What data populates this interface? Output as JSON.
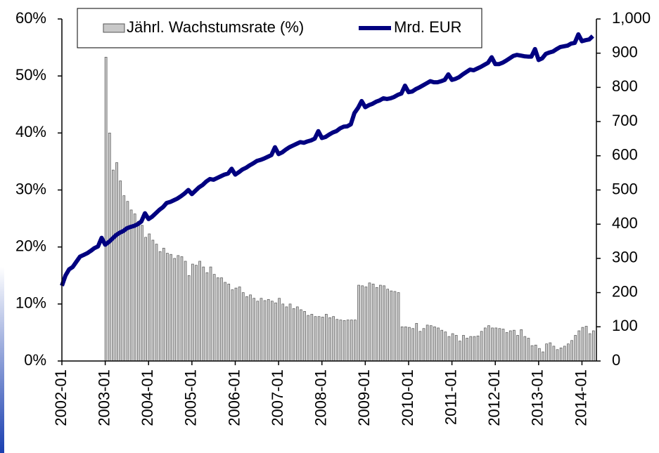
{
  "chart_data": {
    "type": "bar",
    "categories": [
      "2002-01",
      null,
      null,
      null,
      null,
      null,
      null,
      null,
      null,
      null,
      null,
      null,
      "2003-01",
      null,
      null,
      null,
      null,
      null,
      null,
      null,
      null,
      null,
      null,
      null,
      "2004-01",
      null,
      null,
      null,
      null,
      null,
      null,
      null,
      null,
      null,
      null,
      null,
      "2005-01",
      null,
      null,
      null,
      null,
      null,
      null,
      null,
      null,
      null,
      null,
      null,
      "2006-01",
      null,
      null,
      null,
      null,
      null,
      null,
      null,
      null,
      null,
      null,
      null,
      "2007-01",
      null,
      null,
      null,
      null,
      null,
      null,
      null,
      null,
      null,
      null,
      null,
      "2008-01",
      null,
      null,
      null,
      null,
      null,
      null,
      null,
      null,
      null,
      null,
      null,
      "2009-01",
      null,
      null,
      null,
      null,
      null,
      null,
      null,
      null,
      null,
      null,
      null,
      "2010-01",
      null,
      null,
      null,
      null,
      null,
      null,
      null,
      null,
      null,
      null,
      null,
      "2011-01",
      null,
      null,
      null,
      null,
      null,
      null,
      null,
      null,
      null,
      null,
      null,
      "2012-01",
      null,
      null,
      null,
      null,
      null,
      null,
      null,
      null,
      null,
      null,
      null,
      "2013-01",
      null,
      null,
      null,
      null,
      null,
      null,
      null,
      null,
      null,
      null,
      null,
      "2014-01",
      null,
      null,
      null
    ],
    "series": [
      {
        "name": "Jährl. Wachstumsrate (%)",
        "type": "bar",
        "axis": "y",
        "color": "#c8c8c8",
        "values": [
          null,
          null,
          null,
          null,
          null,
          null,
          null,
          null,
          null,
          null,
          null,
          null,
          53.3,
          40.0,
          33.5,
          34.8,
          31.6,
          29.0,
          28.0,
          26.5,
          25.8,
          24.5,
          23.8,
          21.7,
          22.3,
          21.2,
          20.5,
          19.2,
          19.8,
          18.9,
          18.7,
          18.0,
          18.5,
          18.3,
          17.5,
          15.0,
          17.0,
          16.8,
          17.5,
          16.5,
          15.5,
          16.5,
          15.2,
          14.6,
          14.6,
          13.8,
          13.5,
          12.5,
          12.8,
          13.0,
          12.0,
          11.3,
          11.6,
          11.0,
          10.5,
          11.0,
          10.6,
          10.8,
          10.5,
          10.2,
          11.0,
          10.0,
          9.5,
          10.0,
          9.2,
          9.5,
          9.0,
          8.7,
          8.0,
          8.2,
          7.8,
          7.8,
          7.7,
          8.2,
          7.6,
          7.8,
          7.3,
          7.2,
          7.1,
          7.2,
          7.2,
          7.2,
          13.3,
          13.2,
          13.0,
          13.7,
          13.5,
          12.9,
          13.3,
          13.2,
          12.6,
          12.3,
          12.2,
          12.0,
          6.0,
          6.0,
          5.9,
          5.7,
          6.6,
          5.2,
          5.7,
          6.3,
          6.2,
          6.0,
          5.8,
          5.4,
          5.1,
          4.3,
          4.8,
          4.5,
          3.5,
          4.5,
          4.0,
          4.3,
          4.3,
          4.4,
          5.2,
          5.8,
          6.2,
          5.8,
          5.8,
          5.7,
          5.6,
          5.0,
          5.3,
          5.4,
          4.5,
          5.5,
          4.3,
          4.0,
          2.7,
          2.8,
          2.2,
          1.6,
          3.0,
          3.2,
          2.6,
          2.0,
          2.3,
          2.6,
          3.0,
          3.6,
          4.5,
          5.3,
          5.9,
          6.1,
          4.8,
          5.3
        ]
      },
      {
        "name": "Mrd. EUR",
        "type": "line",
        "axis": "y2",
        "color": "#000080",
        "values": [
          220,
          250,
          268,
          275,
          290,
          305,
          310,
          315,
          322,
          330,
          335,
          360,
          340,
          348,
          358,
          368,
          375,
          380,
          388,
          392,
          395,
          400,
          408,
          432,
          415,
          422,
          432,
          442,
          450,
          462,
          465,
          470,
          475,
          482,
          490,
          500,
          488,
          498,
          508,
          515,
          525,
          532,
          530,
          535,
          540,
          545,
          548,
          562,
          545,
          552,
          560,
          565,
          572,
          578,
          585,
          588,
          592,
          597,
          602,
          625,
          605,
          610,
          618,
          625,
          630,
          635,
          640,
          638,
          642,
          645,
          650,
          672,
          652,
          655,
          662,
          668,
          672,
          680,
          685,
          686,
          692,
          725,
          740,
          760,
          742,
          748,
          752,
          758,
          762,
          768,
          766,
          768,
          772,
          778,
          782,
          805,
          786,
          788,
          795,
          800,
          806,
          812,
          818,
          815,
          815,
          818,
          822,
          838,
          822,
          825,
          830,
          838,
          845,
          852,
          850,
          855,
          860,
          866,
          872,
          888,
          868,
          868,
          872,
          878,
          885,
          892,
          895,
          893,
          891,
          890,
          890,
          912,
          880,
          885,
          898,
          902,
          905,
          912,
          918,
          920,
          922,
          928,
          930,
          955,
          935,
          938,
          940,
          950
        ]
      }
    ],
    "ylim": [
      0,
      60
    ],
    "yticks": [
      {
        "value": 0,
        "label": "0%"
      },
      {
        "value": 10,
        "label": "10%"
      },
      {
        "value": 20,
        "label": "20%"
      },
      {
        "value": 30,
        "label": "30%"
      },
      {
        "value": 40,
        "label": "40%"
      },
      {
        "value": 50,
        "label": "50%"
      },
      {
        "value": 60,
        "label": "60%"
      }
    ],
    "y2lim": [
      0,
      1000
    ],
    "y2ticks": [
      0,
      100,
      200,
      300,
      400,
      500,
      600,
      700,
      800,
      900,
      {
        "value": 1000,
        "label": "1,000"
      }
    ],
    "grid": false,
    "legend": "top"
  }
}
